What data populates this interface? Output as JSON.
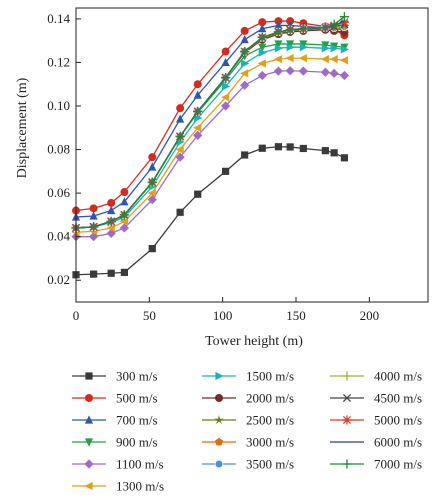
{
  "chart_data": {
    "type": "line",
    "title": "",
    "xlabel": "Tower height (m)",
    "ylabel": "Displacement (m)",
    "xlim": [
      0,
      240
    ],
    "ylim": [
      0.01,
      0.145
    ],
    "xticks": [
      0,
      50,
      100,
      150,
      200
    ],
    "yticks": [
      0.02,
      0.04,
      0.06,
      0.08,
      0.1,
      0.12,
      0.14
    ],
    "ytick_labels": [
      "0.02",
      "0.04",
      "0.06",
      "0.08",
      "0.10",
      "0.12",
      "0.14"
    ],
    "grid": false,
    "legend_position": "bottom",
    "x": [
      0,
      12,
      24,
      33,
      52,
      71,
      83,
      102,
      115,
      127,
      138,
      146,
      155,
      170,
      176,
      183
    ],
    "series": [
      {
        "name": "300 m/s",
        "color": "#3a3a3a",
        "marker": "square",
        "values": [
          0.0225,
          0.0228,
          0.0232,
          0.0236,
          0.0345,
          0.0512,
          0.0595,
          0.07,
          0.0775,
          0.0806,
          0.0813,
          0.0812,
          0.0805,
          0.0795,
          0.0785,
          0.0762
        ]
      },
      {
        "name": "500 m/s",
        "color": "#d62a1e",
        "marker": "circle",
        "values": [
          0.052,
          0.053,
          0.0555,
          0.0605,
          0.0765,
          0.099,
          0.11,
          0.125,
          0.1345,
          0.1385,
          0.139,
          0.139,
          0.138,
          0.1365,
          0.135,
          0.1325
        ]
      },
      {
        "name": "700 m/s",
        "color": "#2f55b0",
        "marker": "triangle-up",
        "values": [
          0.049,
          0.0495,
          0.052,
          0.056,
          0.072,
          0.094,
          0.105,
          0.12,
          0.1305,
          0.1355,
          0.137,
          0.137,
          0.1365,
          0.136,
          0.1355,
          0.135
        ]
      },
      {
        "name": "900 m/s",
        "color": "#22a04a",
        "marker": "triangle-down",
        "values": [
          0.044,
          0.0445,
          0.047,
          0.05,
          0.065,
          0.086,
          0.097,
          0.112,
          0.123,
          0.127,
          0.1285,
          0.1285,
          0.1285,
          0.128,
          0.1275,
          0.127
        ]
      },
      {
        "name": "1100 m/s",
        "color": "#a06bc8",
        "marker": "diamond",
        "values": [
          0.04,
          0.04,
          0.0415,
          0.044,
          0.057,
          0.0765,
          0.0865,
          0.1,
          0.1095,
          0.114,
          0.116,
          0.1162,
          0.116,
          0.1155,
          0.115,
          0.114
        ]
      },
      {
        "name": "1300 m/s",
        "color": "#e0a01a",
        "marker": "triangle-left",
        "values": [
          0.042,
          0.0425,
          0.044,
          0.047,
          0.06,
          0.08,
          0.09,
          0.104,
          0.115,
          0.1195,
          0.1215,
          0.122,
          0.122,
          0.1215,
          0.1215,
          0.121
        ]
      },
      {
        "name": "1500 m/s",
        "color": "#1ab3b8",
        "marker": "triangle-right",
        "values": [
          0.044,
          0.0445,
          0.0465,
          0.049,
          0.063,
          0.0835,
          0.0945,
          0.109,
          0.1195,
          0.1245,
          0.1265,
          0.127,
          0.127,
          0.1265,
          0.1265,
          0.126
        ]
      },
      {
        "name": "2000 m/s",
        "color": "#7a2a2a",
        "marker": "circle",
        "values": [
          0.044,
          0.0445,
          0.047,
          0.05,
          0.065,
          0.086,
          0.0975,
          0.113,
          0.1245,
          0.1305,
          0.133,
          0.134,
          0.1345,
          0.135,
          0.1345,
          0.134
        ]
      },
      {
        "name": "2500 m/s",
        "color": "#6e7a1a",
        "marker": "star",
        "values": [
          0.044,
          0.0445,
          0.047,
          0.05,
          0.065,
          0.086,
          0.0975,
          0.113,
          0.125,
          0.131,
          0.1335,
          0.1345,
          0.135,
          0.1355,
          0.1355,
          0.1355
        ]
      },
      {
        "name": "3000 m/s",
        "color": "#e06a12",
        "marker": "pentagon",
        "values": [
          0.044,
          0.0445,
          0.047,
          0.05,
          0.065,
          0.086,
          0.0975,
          0.113,
          0.125,
          0.131,
          0.134,
          0.135,
          0.1355,
          0.136,
          0.136,
          0.136
        ]
      },
      {
        "name": "3500 m/s",
        "color": "#4a90d6",
        "marker": "ball",
        "values": [
          0.044,
          0.0445,
          0.047,
          0.05,
          0.065,
          0.086,
          0.0975,
          0.113,
          0.125,
          0.1315,
          0.134,
          0.135,
          0.1355,
          0.136,
          0.136,
          0.1365
        ]
      },
      {
        "name": "4000 m/s",
        "color": "#9ab82a",
        "marker": "plus",
        "values": [
          0.044,
          0.0445,
          0.047,
          0.05,
          0.065,
          0.086,
          0.0975,
          0.113,
          0.125,
          0.1315,
          0.134,
          0.135,
          0.1355,
          0.136,
          0.1365,
          0.137
        ]
      },
      {
        "name": "4500 m/s",
        "color": "#444444",
        "marker": "x",
        "values": [
          0.044,
          0.0445,
          0.047,
          0.05,
          0.065,
          0.086,
          0.0975,
          0.113,
          0.125,
          0.1315,
          0.134,
          0.135,
          0.1355,
          0.136,
          0.1365,
          0.1375
        ]
      },
      {
        "name": "5000 m/s",
        "color": "#d23a2a",
        "marker": "asterisk",
        "values": [
          0.044,
          0.0445,
          0.047,
          0.05,
          0.065,
          0.086,
          0.0975,
          0.113,
          0.125,
          0.1315,
          0.134,
          0.135,
          0.1355,
          0.136,
          0.137,
          0.1385
        ]
      },
      {
        "name": "6000 m/s",
        "color": "#2b3fa0",
        "marker": "none",
        "values": [
          0.044,
          0.0445,
          0.047,
          0.05,
          0.065,
          0.086,
          0.0975,
          0.113,
          0.125,
          0.1315,
          0.134,
          0.135,
          0.1355,
          0.136,
          0.137,
          0.139
        ]
      },
      {
        "name": "7000 m/s",
        "color": "#1e8a3a",
        "marker": "plus",
        "values": [
          0.044,
          0.0445,
          0.047,
          0.05,
          0.065,
          0.086,
          0.0975,
          0.113,
          0.125,
          0.1315,
          0.134,
          0.135,
          0.1355,
          0.136,
          0.1375,
          0.141
        ]
      }
    ]
  }
}
